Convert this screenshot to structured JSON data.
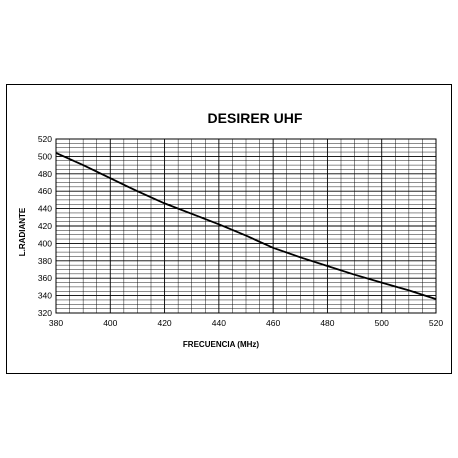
{
  "chart_data": {
    "type": "line",
    "title": "DESIRER UHF",
    "xlabel": "FRECUENCIA  (MHz)",
    "ylabel": "L.RADIANTE",
    "xlim": [
      380,
      520
    ],
    "ylim": [
      320,
      520
    ],
    "x_ticks": [
      "380",
      "400",
      "420",
      "440",
      "460",
      "480",
      "500",
      "520"
    ],
    "y_ticks": [
      "320",
      "340",
      "360",
      "380",
      "400",
      "420",
      "440",
      "460",
      "480",
      "500",
      "520"
    ],
    "grid": true,
    "line_color": "#000000",
    "series": [
      {
        "x": [
          380,
          390,
          400,
          410,
          420,
          430,
          440,
          450,
          460,
          470,
          480,
          490,
          500,
          510,
          520
        ],
        "y": [
          504,
          490,
          475,
          460,
          446,
          434,
          422,
          409,
          395,
          384,
          374,
          364,
          355,
          346,
          336
        ]
      }
    ]
  }
}
